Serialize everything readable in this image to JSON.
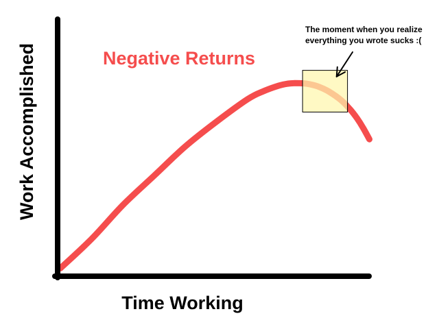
{
  "chart_data": {
    "type": "line",
    "title": "Negative Returns",
    "xlabel": "Time Working",
    "ylabel": "Work Accomplished",
    "xlim": [
      0,
      100
    ],
    "ylim": [
      0,
      100
    ],
    "grid": false,
    "series": [
      {
        "x": [
          0,
          10,
          20,
          30,
          40,
          50,
          60,
          65,
          70,
          73,
          75,
          78,
          80,
          83,
          86,
          90,
          93,
          95,
          97,
          99
        ],
        "y": [
          2,
          15,
          30,
          43,
          56,
          67,
          77,
          80.5,
          83,
          83.9,
          84.1,
          84,
          83.6,
          82.4,
          80.4,
          76.5,
          72.2,
          68.6,
          64.3,
          59.2
        ]
      }
    ],
    "highlight_box": {
      "x_range": [
        77.6,
        92
      ],
      "y_range": [
        71.3,
        89.8
      ]
    },
    "annotation": {
      "lines": [
        "The moment when you realize",
        "everything you wrote sucks :("
      ],
      "points_to": {
        "x": 88.5,
        "y": 87
      }
    }
  },
  "colors": {
    "curve": "#f54d4d",
    "axes": "#000000",
    "highlight_fill": "#fff7ad",
    "highlight_stroke": "#000000"
  }
}
